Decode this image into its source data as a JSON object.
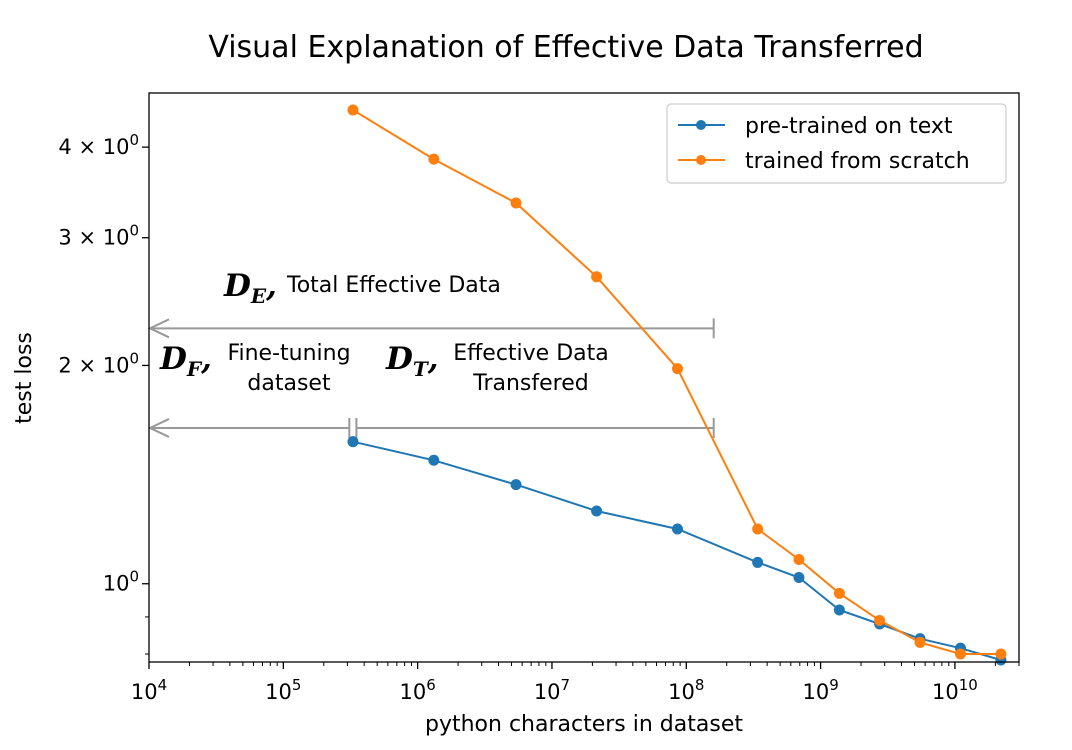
{
  "chart_data": {
    "type": "line",
    "title": "Visual Explanation of Effective Data Transferred",
    "xlabel": "python characters in dataset",
    "ylabel": "test loss",
    "xscale": "log",
    "yscale": "log",
    "xlim": [
      10000,
      30000000000
    ],
    "ylim": [
      0.78,
      4.75
    ],
    "x_ticks": [
      {
        "base": "10",
        "exp": "4",
        "value": 10000
      },
      {
        "base": "10",
        "exp": "5",
        "value": 100000
      },
      {
        "base": "10",
        "exp": "6",
        "value": 1000000
      },
      {
        "base": "10",
        "exp": "7",
        "value": 10000000
      },
      {
        "base": "10",
        "exp": "8",
        "value": 100000000
      },
      {
        "base": "10",
        "exp": "9",
        "value": 1000000000
      },
      {
        "base": "10",
        "exp": "10",
        "value": 10000000000
      }
    ],
    "y_ticks": [
      {
        "base": "4 × 10",
        "exp": "0",
        "value": 4
      },
      {
        "base": "3 × 10",
        "exp": "0",
        "value": 3
      },
      {
        "base": "2 × 10",
        "exp": "0",
        "value": 2
      },
      {
        "base": "10",
        "exp": "0",
        "value": 1
      }
    ],
    "legend_position": "top-right",
    "series": [
      {
        "name": "pre-trained on text",
        "color": "#1f77b4",
        "x": [
          330000,
          1320000,
          5400000,
          21500000,
          86000000,
          340000000,
          690000000,
          1380000000,
          2750000000,
          5500000000,
          11000000000,
          22000000000
        ],
        "y": [
          1.57,
          1.48,
          1.37,
          1.26,
          1.19,
          1.07,
          1.02,
          0.92,
          0.88,
          0.84,
          0.815,
          0.785
        ]
      },
      {
        "name": "trained from scratch",
        "color": "#ff7f0e",
        "x": [
          330000,
          1320000,
          5400000,
          21500000,
          86000000,
          340000000,
          690000000,
          1380000000,
          2750000000,
          5500000000,
          11000000000,
          22000000000
        ],
        "y": [
          4.5,
          3.85,
          3.35,
          2.65,
          1.98,
          1.19,
          1.08,
          0.97,
          0.89,
          0.83,
          0.8,
          0.8
        ]
      }
    ],
    "annotations": {
      "arrow_color": "#999999",
      "de": {
        "symbol": "D",
        "subscript": "E",
        "label": "Total Effective Data",
        "x_start": 10000,
        "x_end": 160000000,
        "y": 2.25
      },
      "df": {
        "symbol": "D",
        "subscript": "F",
        "line1": "Fine-tuning",
        "line2": "dataset",
        "x_start": 10000,
        "x_end": 310000,
        "y": 1.64
      },
      "dt": {
        "symbol": "D",
        "subscript": "T",
        "line1": "Effective Data",
        "line2": "Transfered",
        "x_start": 350000,
        "x_end": 160000000,
        "y": 1.64
      }
    }
  }
}
